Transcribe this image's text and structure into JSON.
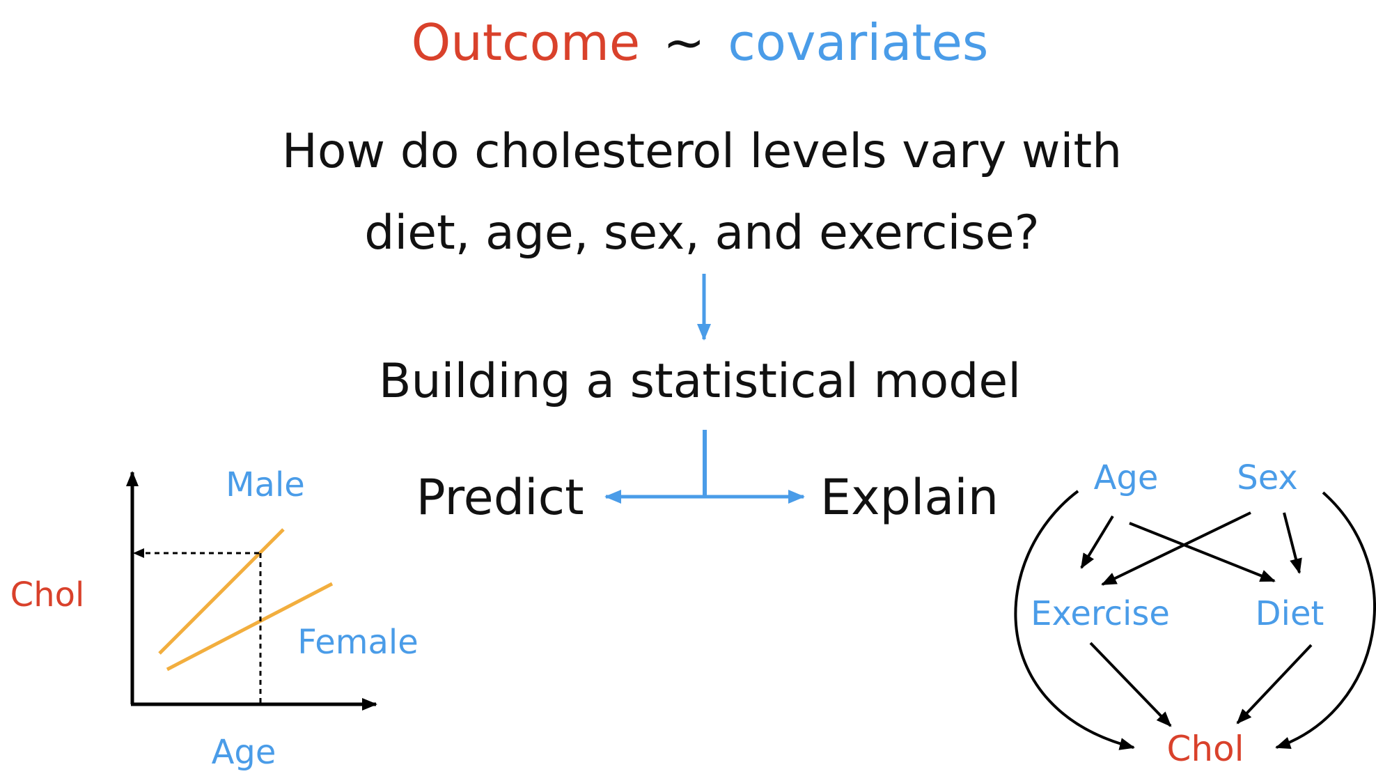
{
  "colors": {
    "outcome_red": "#d9412b",
    "covariate_blue": "#4a9ce8",
    "text_black": "#111111",
    "line_orange": "#f2ae3e",
    "arrow_black": "#000000"
  },
  "title": {
    "outcome": "Outcome",
    "tilde": "~",
    "covariates": "covariates"
  },
  "question": {
    "line1": "How do cholesterol levels vary with",
    "line2": "diet, age, sex, and exercise?"
  },
  "model_step": "Building a statistical model",
  "branches": {
    "predict": "Predict",
    "explain": "Explain"
  },
  "predict_plot": {
    "y_label": "Chol",
    "x_label": "Age",
    "series_male": "Male",
    "series_female": "Female"
  },
  "causal_graph": {
    "nodes": {
      "age": "Age",
      "sex": "Sex",
      "exercise": "Exercise",
      "diet": "Diet",
      "chol": "Chol"
    },
    "edges": [
      {
        "from": "age",
        "to": "exercise"
      },
      {
        "from": "age",
        "to": "diet"
      },
      {
        "from": "sex",
        "to": "exercise"
      },
      {
        "from": "sex",
        "to": "diet"
      },
      {
        "from": "exercise",
        "to": "chol"
      },
      {
        "from": "diet",
        "to": "chol"
      },
      {
        "from": "age",
        "to": "chol"
      },
      {
        "from": "sex",
        "to": "chol"
      }
    ]
  }
}
